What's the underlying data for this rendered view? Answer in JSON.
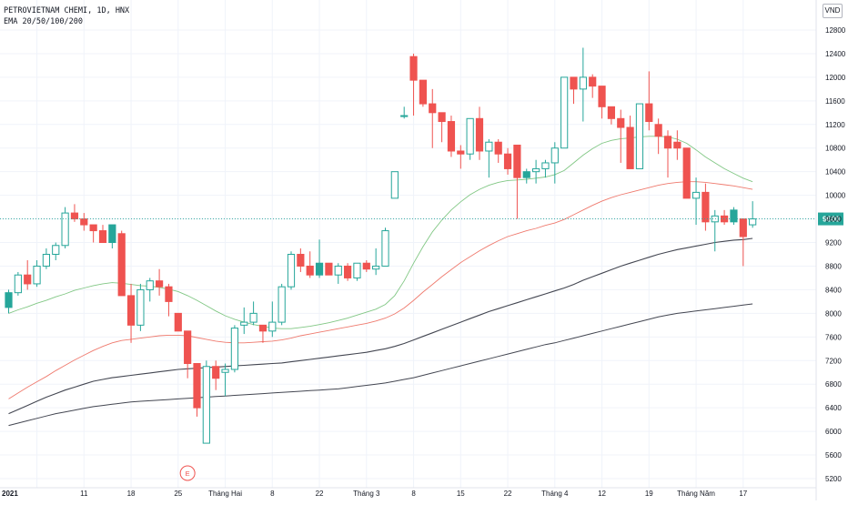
{
  "legend": {
    "symbol_line": "PETROVIETNAM CHEMI, 1D, HNX",
    "indicator_line": "EMA 20/50/100/200"
  },
  "currency": "VND",
  "last_price_label": "9600",
  "event_marker": "E",
  "colors": {
    "up": "#26a69a",
    "down": "#ef5350",
    "ema20": "#81c784",
    "ema50": "#ef7a6e",
    "ema100": "#434651",
    "ema200": "#434651",
    "price_line": "#26a69a"
  },
  "chart_data": {
    "type": "candlestick",
    "ylim": [
      5200,
      12900
    ],
    "y_ticks": [
      5200,
      5600,
      6000,
      6400,
      6800,
      7200,
      7600,
      8000,
      8400,
      8800,
      9200,
      9600,
      10000,
      10400,
      10800,
      11200,
      11600,
      12000,
      12400,
      12800
    ],
    "x_labels": [
      {
        "index": 3,
        "label": "2021"
      },
      {
        "index": 8,
        "label": "11"
      },
      {
        "index": 13,
        "label": "18"
      },
      {
        "index": 18,
        "label": "25"
      },
      {
        "index": 23,
        "label": "Tháng Hai"
      },
      {
        "index": 28,
        "label": "8"
      },
      {
        "index": 33,
        "label": "22"
      },
      {
        "index": 38,
        "label": "Tháng 3"
      },
      {
        "index": 43,
        "label": "8"
      },
      {
        "index": 48,
        "label": "15"
      },
      {
        "index": 53,
        "label": "22"
      },
      {
        "index": 58,
        "label": "Tháng 4"
      },
      {
        "index": 63,
        "label": "12"
      },
      {
        "index": 68,
        "label": "19"
      },
      {
        "index": 73,
        "label": "Tháng Năm"
      },
      {
        "index": 78,
        "label": "17"
      }
    ],
    "x_label_positions_note": "",
    "candles": [
      [
        8100,
        8400,
        8000,
        8350
      ],
      [
        8350,
        8700,
        8300,
        8650
      ],
      [
        8650,
        8900,
        8400,
        8500
      ],
      [
        8500,
        8900,
        8450,
        8800
      ],
      [
        8800,
        9100,
        8750,
        9000
      ],
      [
        9000,
        9200,
        8900,
        9150
      ],
      [
        9150,
        9800,
        9100,
        9700
      ],
      [
        9700,
        9850,
        9550,
        9600
      ],
      [
        9600,
        9700,
        9400,
        9500
      ],
      [
        9500,
        9500,
        9200,
        9400
      ],
      [
        9400,
        9500,
        9200,
        9200
      ],
      [
        9200,
        9500,
        9100,
        9500
      ],
      [
        9350,
        9400,
        8300,
        8300
      ],
      [
        8300,
        8500,
        7500,
        7800
      ],
      [
        7800,
        8500,
        7700,
        8400
      ],
      [
        8400,
        8600,
        8200,
        8550
      ],
      [
        8550,
        8750,
        8300,
        8450
      ],
      [
        8450,
        8500,
        7950,
        8200
      ],
      [
        8000,
        8000,
        7700,
        7700
      ],
      [
        7700,
        7700,
        6900,
        7150
      ],
      [
        7150,
        7150,
        6250,
        6400
      ],
      [
        5800,
        7200,
        5800,
        7100
      ],
      [
        7100,
        7200,
        6700,
        6900
      ],
      [
        7000,
        7150,
        6600,
        7050
      ],
      [
        7050,
        7800,
        7000,
        7750
      ],
      [
        7800,
        8100,
        7650,
        7850
      ],
      [
        7850,
        8200,
        7800,
        8000
      ],
      [
        7800,
        7800,
        7500,
        7700
      ],
      [
        7700,
        8200,
        7600,
        7850
      ],
      [
        7850,
        8500,
        7800,
        8450
      ],
      [
        8450,
        9050,
        8400,
        9000
      ],
      [
        9000,
        9100,
        8700,
        8800
      ],
      [
        8800,
        9050,
        8600,
        8650
      ],
      [
        8650,
        9250,
        8600,
        8850
      ],
      [
        8850,
        8850,
        8650,
        8650
      ],
      [
        8650,
        8850,
        8500,
        8800
      ],
      [
        8800,
        8850,
        8550,
        8600
      ],
      [
        8600,
        8850,
        8550,
        8850
      ],
      [
        8850,
        8900,
        8700,
        8750
      ],
      [
        8750,
        9100,
        8650,
        8800
      ],
      [
        8800,
        9450,
        8800,
        9400
      ],
      [
        9950,
        10400,
        9950,
        10400
      ],
      [
        11350,
        11500,
        11300,
        11350
      ],
      [
        12350,
        12400,
        11350,
        11950
      ],
      [
        11950,
        11950,
        11500,
        11550
      ],
      [
        11550,
        11800,
        10800,
        11400
      ],
      [
        11400,
        11400,
        10900,
        11250
      ],
      [
        11250,
        11350,
        10650,
        10750
      ],
      [
        10750,
        10850,
        10450,
        10700
      ],
      [
        10700,
        11300,
        10600,
        11300
      ],
      [
        11300,
        11500,
        10600,
        10750
      ],
      [
        10750,
        10950,
        10300,
        10900
      ],
      [
        10900,
        10950,
        10550,
        10700
      ],
      [
        10700,
        10800,
        10350,
        10450
      ],
      [
        10850,
        10850,
        9600,
        10300
      ],
      [
        10300,
        10450,
        10200,
        10400
      ],
      [
        10400,
        10600,
        10200,
        10450
      ],
      [
        10450,
        10600,
        10300,
        10550
      ],
      [
        10550,
        10900,
        10200,
        10800
      ],
      [
        10800,
        12000,
        10800,
        12000
      ],
      [
        12000,
        12000,
        11550,
        11800
      ],
      [
        11800,
        12500,
        11250,
        12000
      ],
      [
        12000,
        12050,
        11650,
        11850
      ],
      [
        11850,
        11850,
        11300,
        11500
      ],
      [
        11500,
        11500,
        11200,
        11300
      ],
      [
        11300,
        11450,
        10550,
        11150
      ],
      [
        11150,
        11350,
        10450,
        10450
      ],
      [
        10450,
        11550,
        10450,
        11550
      ],
      [
        11550,
        12100,
        11100,
        11250
      ],
      [
        11200,
        11300,
        10700,
        11000
      ],
      [
        11000,
        11100,
        10300,
        10800
      ],
      [
        10900,
        11100,
        10600,
        10800
      ],
      [
        10800,
        10800,
        9950,
        9950
      ],
      [
        9950,
        10300,
        9500,
        10050
      ],
      [
        10050,
        10200,
        9400,
        9550
      ],
      [
        9550,
        9750,
        9050,
        9650
      ],
      [
        9650,
        9750,
        9500,
        9550
      ],
      [
        9550,
        9800,
        9500,
        9750
      ],
      [
        9600,
        9600,
        8800,
        9300
      ],
      [
        9500,
        9900,
        9450,
        9600
      ]
    ],
    "ema20": [
      8000,
      8060,
      8110,
      8170,
      8220,
      8280,
      8330,
      8390,
      8430,
      8470,
      8500,
      8520,
      8510,
      8490,
      8470,
      8460,
      8440,
      8410,
      8370,
      8300,
      8220,
      8130,
      8040,
      7960,
      7900,
      7850,
      7810,
      7780,
      7750,
      7740,
      7740,
      7760,
      7780,
      7810,
      7840,
      7880,
      7920,
      7970,
      8020,
      8070,
      8150,
      8300,
      8550,
      8850,
      9130,
      9380,
      9580,
      9750,
      9890,
      10010,
      10100,
      10170,
      10220,
      10250,
      10260,
      10270,
      10290,
      10310,
      10350,
      10420,
      10550,
      10680,
      10790,
      10880,
      10930,
      10960,
      10970,
      10990,
      11000,
      11000,
      10990,
      10950,
      10880,
      10770,
      10650,
      10550,
      10450,
      10370,
      10290,
      10230
    ],
    "ema50": [
      6550,
      6650,
      6750,
      6840,
      6930,
      7030,
      7120,
      7210,
      7290,
      7370,
      7440,
      7500,
      7540,
      7560,
      7580,
      7600,
      7620,
      7630,
      7630,
      7620,
      7590,
      7560,
      7530,
      7510,
      7500,
      7500,
      7510,
      7520,
      7530,
      7550,
      7580,
      7620,
      7650,
      7680,
      7710,
      7740,
      7770,
      7800,
      7830,
      7870,
      7920,
      7990,
      8090,
      8220,
      8360,
      8490,
      8620,
      8740,
      8860,
      8960,
      9060,
      9150,
      9230,
      9300,
      9350,
      9400,
      9440,
      9490,
      9530,
      9590,
      9670,
      9750,
      9830,
      9900,
      9960,
      10010,
      10050,
      10090,
      10130,
      10170,
      10200,
      10220,
      10230,
      10230,
      10220,
      10200,
      10180,
      10160,
      10130,
      10100
    ],
    "ema100": [
      6300,
      6370,
      6440,
      6510,
      6580,
      6640,
      6700,
      6750,
      6800,
      6850,
      6880,
      6910,
      6930,
      6950,
      6970,
      6990,
      7010,
      7030,
      7050,
      7060,
      7070,
      7080,
      7090,
      7100,
      7110,
      7120,
      7130,
      7140,
      7150,
      7160,
      7180,
      7200,
      7220,
      7240,
      7260,
      7280,
      7300,
      7320,
      7340,
      7370,
      7400,
      7440,
      7490,
      7550,
      7610,
      7670,
      7730,
      7790,
      7850,
      7910,
      7970,
      8030,
      8080,
      8130,
      8180,
      8230,
      8280,
      8330,
      8380,
      8430,
      8490,
      8560,
      8620,
      8680,
      8740,
      8800,
      8850,
      8900,
      8950,
      9000,
      9040,
      9080,
      9110,
      9140,
      9170,
      9200,
      9220,
      9240,
      9250,
      9270
    ],
    "ema200": [
      6100,
      6140,
      6180,
      6220,
      6260,
      6300,
      6330,
      6360,
      6390,
      6420,
      6440,
      6460,
      6480,
      6500,
      6510,
      6520,
      6530,
      6540,
      6550,
      6560,
      6570,
      6580,
      6590,
      6600,
      6610,
      6620,
      6630,
      6640,
      6650,
      6660,
      6670,
      6680,
      6690,
      6700,
      6710,
      6720,
      6740,
      6760,
      6780,
      6800,
      6820,
      6850,
      6880,
      6910,
      6950,
      6990,
      7030,
      7070,
      7110,
      7150,
      7190,
      7230,
      7270,
      7310,
      7350,
      7390,
      7430,
      7470,
      7500,
      7540,
      7580,
      7620,
      7660,
      7700,
      7740,
      7780,
      7820,
      7860,
      7900,
      7940,
      7970,
      8000,
      8020,
      8040,
      8060,
      8080,
      8100,
      8120,
      8140,
      8160
    ]
  }
}
